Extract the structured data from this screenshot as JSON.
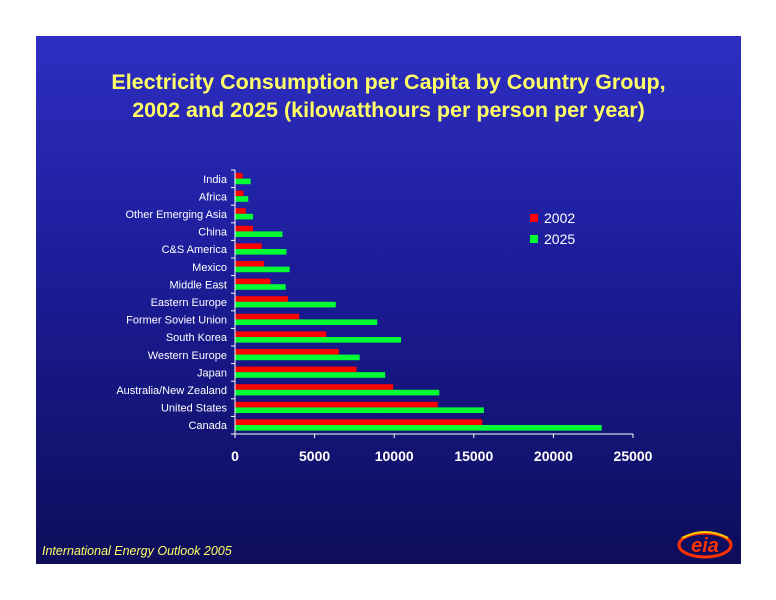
{
  "title": {
    "line1": "Electricity Consumption per Capita by Country Group,",
    "line2": "2002 and 2025 (kilowatthours per person per year)"
  },
  "footer": "International Energy Outlook 2005",
  "logo_text": "eia",
  "colors": {
    "s2002": "#ff0000",
    "s2025": "#00ff33",
    "text": "#ffffff",
    "title": "#ffff66"
  },
  "chart_data": {
    "type": "bar",
    "orientation": "horizontal",
    "title": "Electricity Consumption per Capita by Country Group, 2002 and 2025 (kilowatthours per person per year)",
    "categories": [
      "India",
      "Africa",
      "Other Emerging Asia",
      "China",
      "C&S America",
      "Mexico",
      "Middle East",
      "Eastern Europe",
      "Former Soviet Union",
      "South Korea",
      "Western Europe",
      "Japan",
      "Australia/New Zealand",
      "United States",
      "Canada"
    ],
    "series": [
      {
        "name": "2002",
        "values": [
          450,
          500,
          650,
          1100,
          1650,
          1800,
          2200,
          3300,
          4000,
          5700,
          6500,
          7600,
          9900,
          12700,
          15500
        ]
      },
      {
        "name": "2025",
        "values": [
          950,
          800,
          1100,
          2950,
          3200,
          3400,
          3150,
          6300,
          8900,
          10400,
          7800,
          9400,
          12800,
          15600,
          23000
        ]
      }
    ],
    "xticks": [
      "0",
      "5000",
      "10000",
      "15000",
      "20000",
      "25000"
    ],
    "xlim": [
      0,
      25000
    ],
    "xlabel": "",
    "ylabel": "",
    "legend": "right",
    "grid": false
  }
}
